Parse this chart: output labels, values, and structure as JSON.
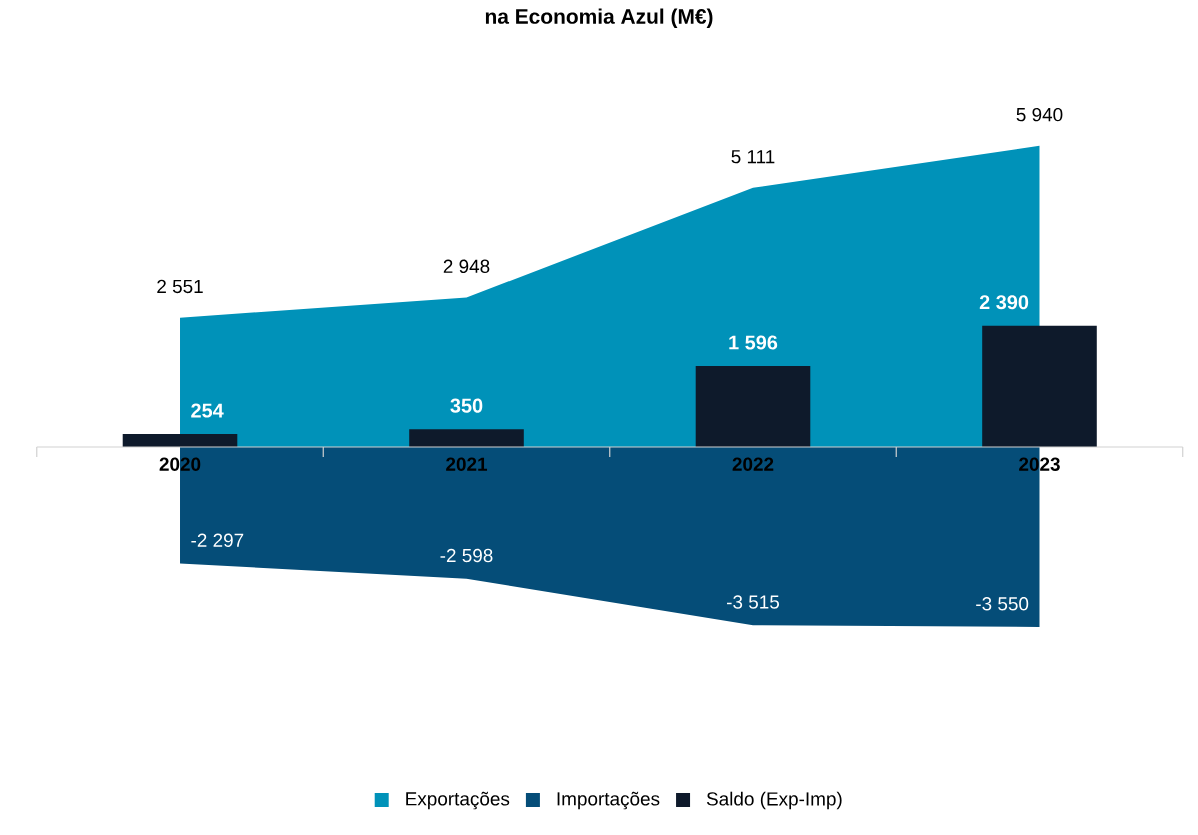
{
  "chart_data": {
    "type": "area",
    "title": "na Economia Azul (M€)",
    "categories": [
      "2020",
      "2021",
      "2022",
      "2023"
    ],
    "series": [
      {
        "name": "Exportações",
        "color": "#0092b9",
        "values": [
          2551,
          2948,
          5111,
          5940
        ]
      },
      {
        "name": "Importações",
        "color": "#054d78",
        "values": [
          -2297,
          -2598,
          -3515,
          -3550
        ]
      },
      {
        "name": "Saldo (Exp-Imp)",
        "type": "bar",
        "color": "#0e1a2b",
        "values": [
          254,
          350,
          1596,
          2390
        ]
      }
    ],
    "data_labels": true,
    "legend": "bottom",
    "tick_labels": "x",
    "grid": false
  }
}
